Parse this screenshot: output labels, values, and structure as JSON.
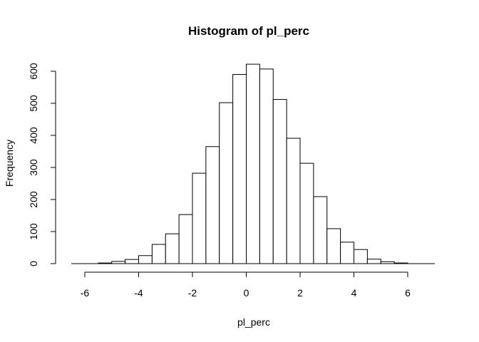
{
  "chart_data": {
    "type": "bar",
    "title": "Histogram of pl_perc",
    "xlabel": "pl_perc",
    "ylabel": "Frequency",
    "bin_width": 0.5,
    "bins": [
      {
        "x0": -5.5,
        "x1": -5.0,
        "count": 2
      },
      {
        "x0": -5.0,
        "x1": -4.5,
        "count": 7
      },
      {
        "x0": -4.5,
        "x1": -4.0,
        "count": 13
      },
      {
        "x0": -4.0,
        "x1": -3.5,
        "count": 25
      },
      {
        "x0": -3.5,
        "x1": -3.0,
        "count": 60
      },
      {
        "x0": -3.0,
        "x1": -2.5,
        "count": 93
      },
      {
        "x0": -2.5,
        "x1": -2.0,
        "count": 153
      },
      {
        "x0": -2.0,
        "x1": -1.5,
        "count": 282
      },
      {
        "x0": -1.5,
        "x1": -1.0,
        "count": 365
      },
      {
        "x0": -1.0,
        "x1": -0.5,
        "count": 502
      },
      {
        "x0": -0.5,
        "x1": 0.0,
        "count": 590
      },
      {
        "x0": 0.0,
        "x1": 0.5,
        "count": 622
      },
      {
        "x0": 0.5,
        "x1": 1.0,
        "count": 607
      },
      {
        "x0": 1.0,
        "x1": 1.5,
        "count": 512
      },
      {
        "x0": 1.5,
        "x1": 2.0,
        "count": 391
      },
      {
        "x0": 2.0,
        "x1": 2.5,
        "count": 313
      },
      {
        "x0": 2.5,
        "x1": 3.0,
        "count": 209
      },
      {
        "x0": 3.0,
        "x1": 3.5,
        "count": 109
      },
      {
        "x0": 3.5,
        "x1": 4.0,
        "count": 67
      },
      {
        "x0": 4.0,
        "x1": 4.5,
        "count": 44
      },
      {
        "x0": 4.5,
        "x1": 5.0,
        "count": 14
      },
      {
        "x0": 5.0,
        "x1": 5.5,
        "count": 6
      },
      {
        "x0": 5.5,
        "x1": 6.0,
        "count": 2
      }
    ],
    "x_ticks": [
      -6,
      -4,
      -2,
      0,
      2,
      4,
      6
    ],
    "y_ticks": [
      0,
      100,
      200,
      300,
      400,
      500,
      600
    ],
    "xlim": [
      -6.5,
      7.0
    ],
    "ylim": [
      0,
      622
    ],
    "grid": false,
    "legend": false,
    "colors": {
      "bar_fill": "#ffffff",
      "bar_stroke": "#000000",
      "axis": "#000000"
    }
  }
}
